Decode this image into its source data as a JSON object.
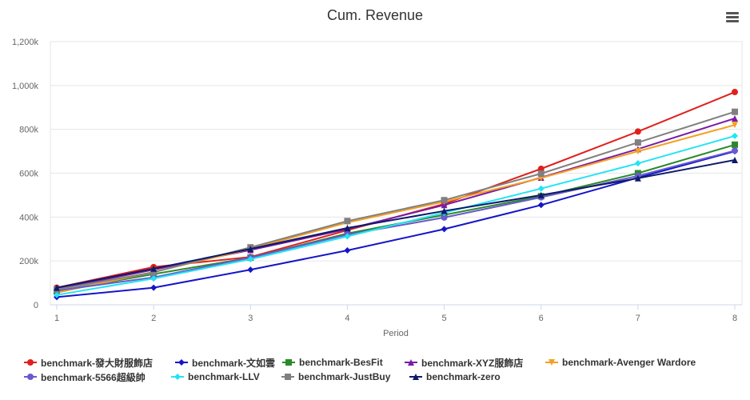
{
  "chart_data": {
    "type": "line",
    "title": "Cum. Revenue",
    "xlabel": "Period",
    "ylabel": "",
    "x": [
      1,
      2,
      3,
      4,
      5,
      6,
      7,
      8
    ],
    "xlim": [
      1,
      8
    ],
    "ylim": [
      0,
      1200000
    ],
    "y_ticks": [
      0,
      200000,
      400000,
      600000,
      800000,
      1000000,
      1200000
    ],
    "y_tick_labels": [
      "0",
      "200k",
      "400k",
      "600k",
      "800k",
      "1,000k",
      "1,200k"
    ],
    "x_tick_labels": [
      "1",
      "2",
      "3",
      "4",
      "5",
      "6",
      "7",
      "8"
    ],
    "grid": true,
    "legend_position": "bottom",
    "series": [
      {
        "name": "benchmark-發大財服飾店",
        "color": "#e0201c",
        "marker": "circle",
        "values": [
          78000,
          172000,
          218000,
          340000,
          460000,
          620000,
          790000,
          970000
        ]
      },
      {
        "name": "benchmark-文如雲",
        "color": "#1515c8",
        "marker": "diamond",
        "values": [
          35000,
          78000,
          160000,
          248000,
          345000,
          455000,
          580000,
          700000
        ]
      },
      {
        "name": "benchmark-BesFit",
        "color": "#2a8a2a",
        "marker": "square",
        "values": [
          62000,
          140000,
          215000,
          325000,
          410000,
          495000,
          600000,
          730000
        ]
      },
      {
        "name": "benchmark-XYZ服飾店",
        "color": "#7a1ba6",
        "marker": "triangle-up",
        "values": [
          72000,
          160000,
          250000,
          345000,
          455000,
          580000,
          710000,
          850000
        ]
      },
      {
        "name": "benchmark-Avenger Wardore",
        "color": "#f4a020",
        "marker": "triangle-down",
        "values": [
          55000,
          150000,
          255000,
          375000,
          470000,
          578000,
          700000,
          820000
        ]
      },
      {
        "name": "benchmark-5566超級帥",
        "color": "#6a5acd",
        "marker": "circle",
        "values": [
          65000,
          125000,
          215000,
          320000,
          398000,
          490000,
          588000,
          703000
        ]
      },
      {
        "name": "benchmark-LLV",
        "color": "#22e4f4",
        "marker": "diamond",
        "values": [
          45000,
          120000,
          208000,
          312000,
          420000,
          530000,
          645000,
          770000
        ]
      },
      {
        "name": "benchmark-JustBuy",
        "color": "#808080",
        "marker": "square",
        "values": [
          70000,
          148000,
          262000,
          382000,
          477000,
          598000,
          740000,
          880000
        ]
      },
      {
        "name": "benchmark-zero",
        "color": "#0d1a6a",
        "marker": "triangle-up",
        "values": [
          78000,
          165000,
          255000,
          350000,
          428000,
          500000,
          577000,
          660000
        ]
      }
    ]
  },
  "menu": {
    "icon": "hamburger-menu-icon"
  }
}
